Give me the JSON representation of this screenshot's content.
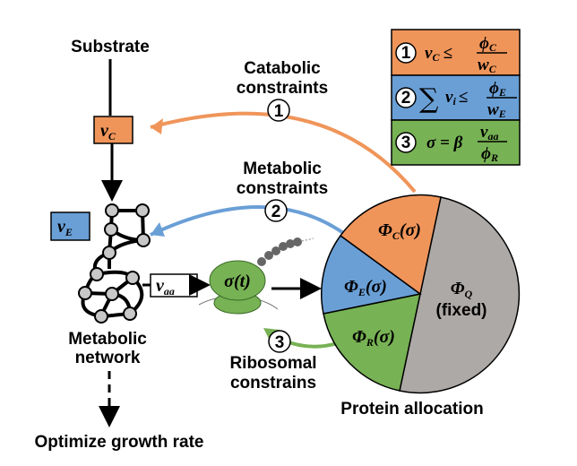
{
  "labels": {
    "substrate": "Substrate",
    "metabolic_network": [
      "Metabolic",
      "network"
    ],
    "optimize": "Optimize growth rate",
    "catabolic": [
      "Catabolic",
      "constraints"
    ],
    "metabolic_constraints": [
      "Metabolic",
      "constraints"
    ],
    "ribosomal": [
      "Ribosomal",
      "constrains"
    ],
    "protein_allocation": "Protein allocation"
  },
  "fluxes": {
    "vC": [
      "v",
      "C"
    ],
    "vE": [
      "v",
      "E"
    ],
    "vaa": [
      "v",
      "aa"
    ]
  },
  "ribosome": "σ(t)",
  "pie": {
    "slices": [
      {
        "name": "Φ",
        "sub": "Q",
        "extra": "(fixed)",
        "color": "#ADA9A6"
      },
      {
        "name": "Φ",
        "sub": "R",
        "arg": "(σ)",
        "color": "#77B254"
      },
      {
        "name": "Φ",
        "sub": "E",
        "arg": "(σ)",
        "color": "#6A9FD6"
      },
      {
        "name": "Φ",
        "sub": "C",
        "arg": "(σ)",
        "color": "#F0955A"
      }
    ]
  },
  "constraint_markers": [
    "1",
    "2",
    "3"
  ],
  "legend": [
    {
      "num": "1",
      "lhs": "v",
      "lhs_sub": "C",
      "op": "≤",
      "num_top": "ϕ",
      "num_top_sub": "C",
      "den": "w",
      "den_sub": "C",
      "color": "#F0955A"
    },
    {
      "num": "2",
      "sum": "∑",
      "lhs": "v",
      "lhs_sub": "i",
      "op": "≤",
      "num_top": "ϕ",
      "num_top_sub": "E",
      "den": "w",
      "den_sub": "E",
      "color": "#6A9FD6"
    },
    {
      "num": "3",
      "lhs": "σ = β",
      "num_top": "v",
      "num_top_sub": "aa",
      "den": "ϕ",
      "den_sub": "R",
      "color": "#77B254"
    }
  ]
}
